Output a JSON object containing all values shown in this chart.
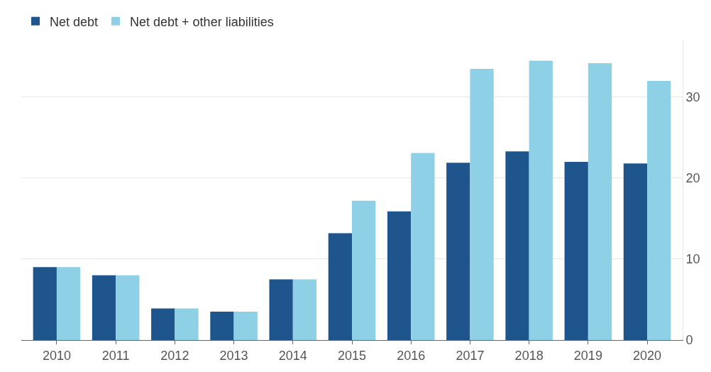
{
  "chart_data": {
    "type": "bar",
    "categories": [
      "2010",
      "2011",
      "2012",
      "2013",
      "2014",
      "2015",
      "2016",
      "2017",
      "2018",
      "2019",
      "2020"
    ],
    "series": [
      {
        "name": "Net debt",
        "color": "#1e558c",
        "values": [
          9.0,
          8.0,
          3.9,
          3.5,
          7.5,
          13.2,
          15.9,
          21.9,
          23.3,
          22.0,
          21.8
        ]
      },
      {
        "name": "Net debt + other liabilities",
        "color": "#8ed0e6",
        "values": [
          9.0,
          8.0,
          3.9,
          3.5,
          7.5,
          17.2,
          23.1,
          33.5,
          34.5,
          34.2,
          32.0
        ]
      }
    ],
    "ylim": [
      0,
      37
    ],
    "yticks": [
      0,
      10,
      20,
      30
    ],
    "grid": "y",
    "legend": "top left"
  }
}
